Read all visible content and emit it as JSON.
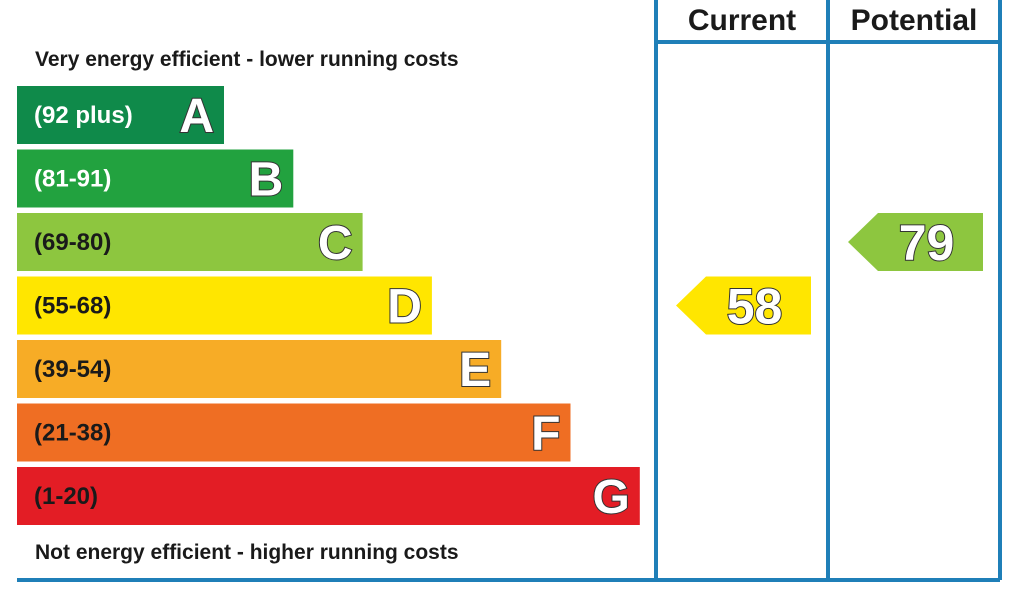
{
  "chart_data": {
    "type": "bar",
    "headers": {
      "current": "Current",
      "potential": "Potential"
    },
    "top_caption": "Very energy efficient - lower running costs",
    "bottom_caption": "Not energy efficient - higher running costs",
    "bands": [
      {
        "letter": "A",
        "range": "(92 plus)",
        "min": 92,
        "max": 100,
        "color": "#0f8a4a",
        "range_color": "#ffffff"
      },
      {
        "letter": "B",
        "range": "(81-91)",
        "min": 81,
        "max": 91,
        "color": "#22a23f",
        "range_color": "#ffffff"
      },
      {
        "letter": "C",
        "range": "(69-80)",
        "min": 69,
        "max": 80,
        "color": "#8dc63f",
        "range_color": "#1a1a1a"
      },
      {
        "letter": "D",
        "range": "(55-68)",
        "min": 55,
        "max": 68,
        "color": "#ffe600",
        "range_color": "#1a1a1a"
      },
      {
        "letter": "E",
        "range": "(39-54)",
        "min": 39,
        "max": 54,
        "color": "#f7ac26",
        "range_color": "#1a1a1a"
      },
      {
        "letter": "F",
        "range": "(21-38)",
        "min": 21,
        "max": 38,
        "color": "#ef6e23",
        "range_color": "#1a1a1a"
      },
      {
        "letter": "G",
        "range": "(1-20)",
        "min": 1,
        "max": 20,
        "color": "#e31d25",
        "range_color": "#1a1a1a"
      }
    ],
    "current": {
      "value": 58,
      "band": "D",
      "color": "#ffe600"
    },
    "potential": {
      "value": 79,
      "band": "C",
      "color": "#8dc63f"
    },
    "frame_color": "#1f7fb8"
  }
}
